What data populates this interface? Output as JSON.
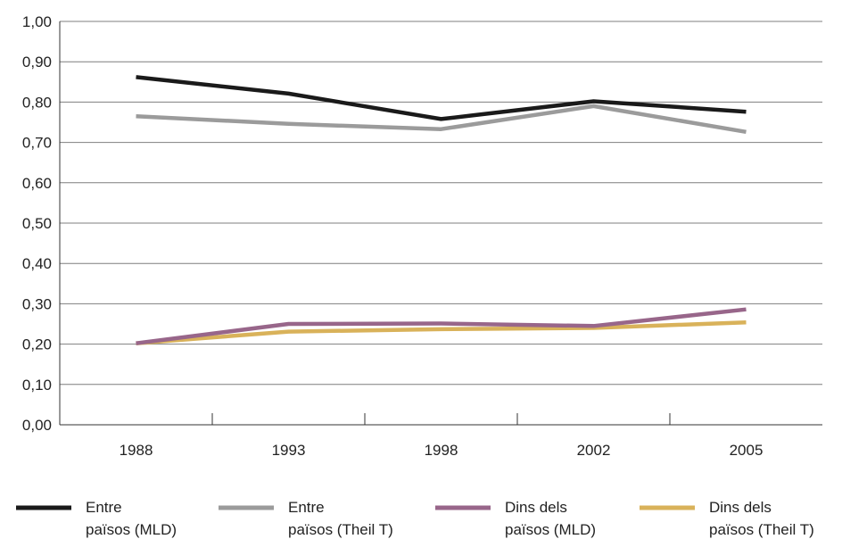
{
  "chart_data": {
    "type": "line",
    "categories": [
      "1988",
      "1993",
      "1998",
      "2002",
      "2005"
    ],
    "ylim": [
      0,
      1.0
    ],
    "y_ticks": [
      "0,00",
      "0,10",
      "0,20",
      "0,30",
      "0,40",
      "0,50",
      "0,60",
      "0,70",
      "0,80",
      "0,90",
      "1,00"
    ],
    "grid": "horizontal",
    "legend_position": "bottom",
    "series": [
      {
        "name_lines": [
          "Entre",
          "països (MLD)"
        ],
        "color": "#1a1a1a",
        "values": [
          0.862,
          0.821,
          0.758,
          0.802,
          0.776
        ]
      },
      {
        "name_lines": [
          "Entre",
          "països (Theil T)"
        ],
        "color": "#9b9b9b",
        "values": [
          0.765,
          0.746,
          0.733,
          0.79,
          0.726
        ]
      },
      {
        "name_lines": [
          "Dins dels",
          "països (MLD)"
        ],
        "color": "#98668a",
        "values": [
          0.202,
          0.25,
          0.251,
          0.245,
          0.286
        ]
      },
      {
        "name_lines": [
          "Dins dels",
          "països (Theil T)"
        ],
        "color": "#d9b25a",
        "values": [
          0.202,
          0.231,
          0.237,
          0.24,
          0.254
        ]
      }
    ]
  }
}
